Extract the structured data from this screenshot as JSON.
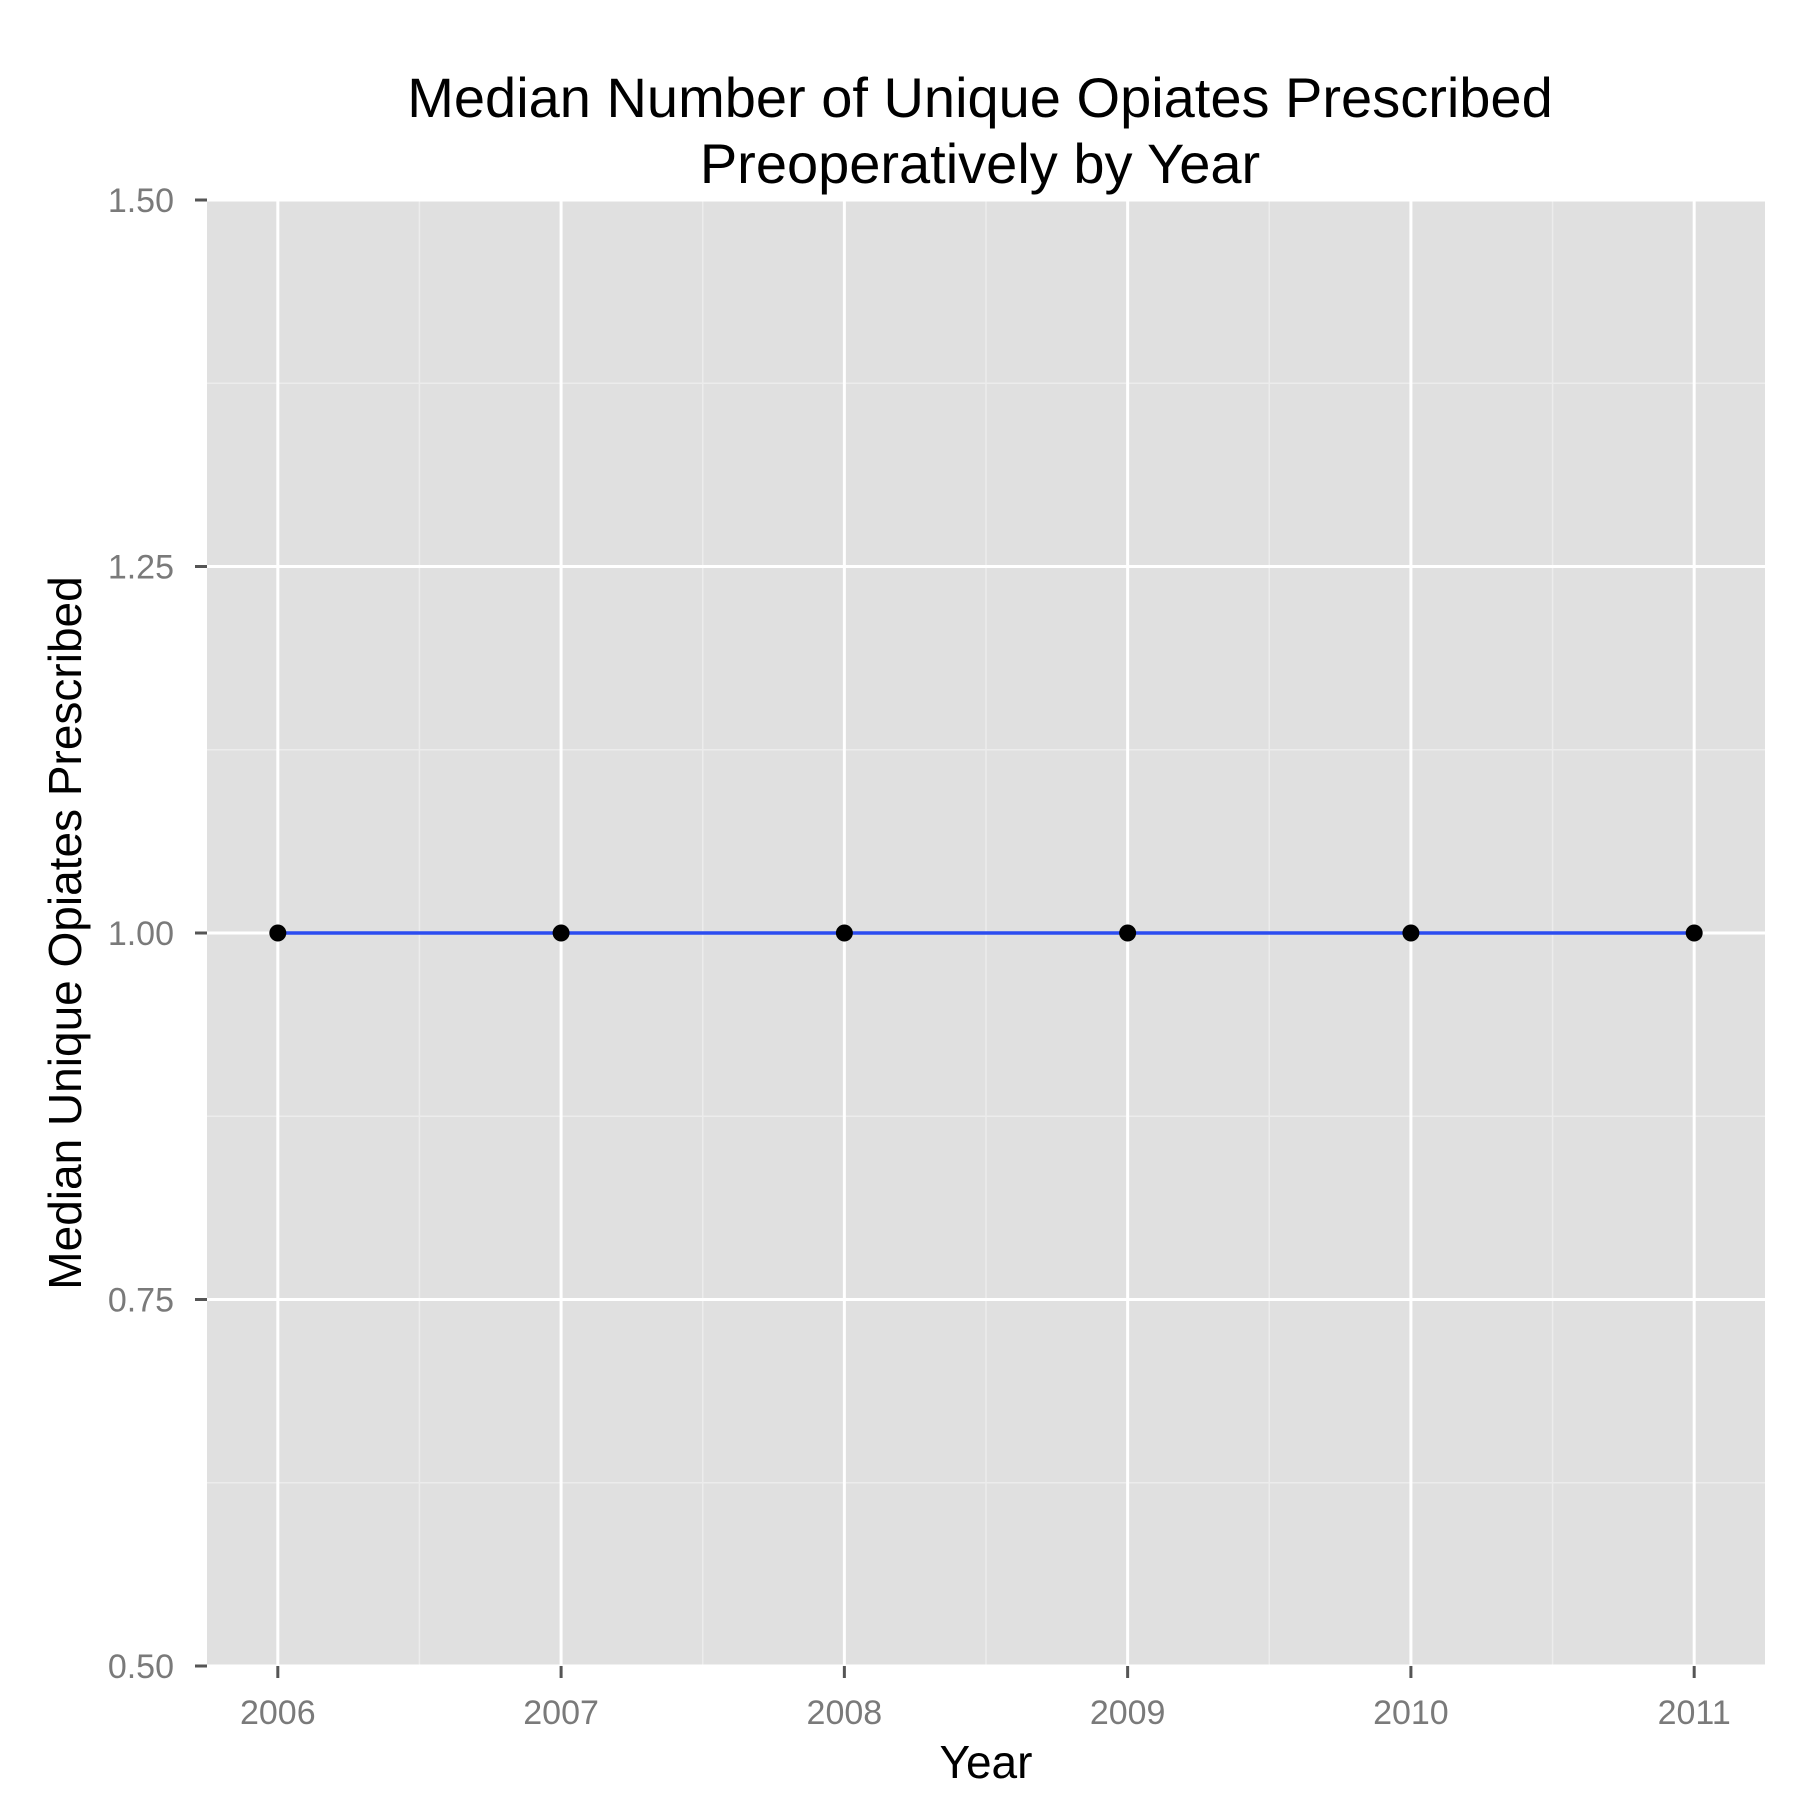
{
  "chart_data": {
    "type": "line",
    "title_lines": [
      "Median Number of Unique Opiates Prescribed",
      "Preoperatively by Year"
    ],
    "xlabel": "Year",
    "ylabel": "Median Unique Opiates Prescribed",
    "x": [
      2006,
      2007,
      2008,
      2009,
      2010,
      2011
    ],
    "x_tick_labels": [
      "2006",
      "2007",
      "2008",
      "2009",
      "2010",
      "2011"
    ],
    "y_tick_labels": [
      "1.50",
      "1.25",
      "1.00",
      "0.75",
      "0.50"
    ],
    "y_ticks": [
      1.5,
      1.25,
      1.0,
      0.75,
      0.5
    ],
    "ylim": [
      0.5,
      1.5
    ],
    "xlim": [
      2005.75,
      2011.25
    ],
    "grid": true,
    "series": [
      {
        "values": [
          1,
          1,
          1,
          1,
          1,
          1
        ]
      }
    ],
    "colors": {
      "panel_background": "#e0e0e0",
      "grid_major": "#ffffff",
      "grid_minor": "#ececec",
      "line": "#2b4cf0",
      "point": "#000000",
      "tick": "#555555"
    }
  }
}
